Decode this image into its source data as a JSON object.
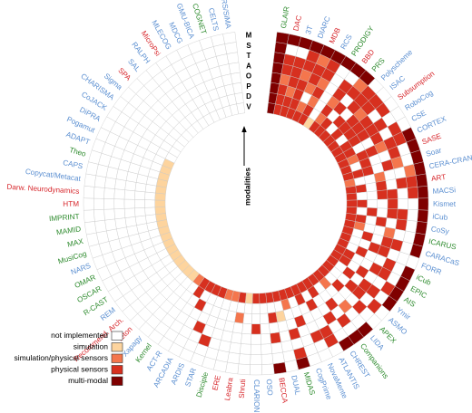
{
  "chart_data": {
    "type": "heatmap",
    "layout": "radial",
    "axis_caption": "modalities",
    "modalities": [
      "M",
      "S",
      "T",
      "A",
      "O",
      "P",
      "D",
      "V"
    ],
    "levels": [
      "not implemented",
      "simulation",
      "simulation/physical sensors",
      "physical sensors",
      "multi-modal"
    ],
    "level_colors": [
      "#ffffff",
      "#fdd49e",
      "#f4764d",
      "#d7301f",
      "#7f0000"
    ],
    "group_colors": {
      "blue": "#5b8fd1",
      "green": "#2e8b2e",
      "red": "#d7262b"
    },
    "architectures": [
      {
        "name": "GLAIR",
        "group": "green",
        "values": [
          4,
          4,
          4,
          4,
          4,
          4,
          4,
          4
        ]
      },
      {
        "name": "DAC",
        "group": "red",
        "values": [
          4,
          0,
          3,
          3,
          2,
          3,
          3,
          3
        ]
      },
      {
        "name": "3T",
        "group": "blue",
        "values": [
          4,
          0,
          3,
          3,
          3,
          2,
          3,
          3
        ]
      },
      {
        "name": "DIARC",
        "group": "blue",
        "values": [
          4,
          3,
          3,
          2,
          3,
          3,
          3,
          3
        ]
      },
      {
        "name": "MDB",
        "group": "red",
        "values": [
          4,
          2,
          3,
          3,
          2,
          0,
          2,
          3
        ]
      },
      {
        "name": "RCS",
        "group": "blue",
        "values": [
          4,
          3,
          3,
          2,
          3,
          2,
          3,
          3
        ]
      },
      {
        "name": "PRODIGY",
        "group": "green",
        "values": [
          4,
          0,
          0,
          0,
          0,
          0,
          0,
          1
        ]
      },
      {
        "name": "BBD",
        "group": "red",
        "values": [
          4,
          0,
          3,
          3,
          2,
          3,
          2,
          3
        ]
      },
      {
        "name": "PRS",
        "group": "green",
        "values": [
          4,
          2,
          3,
          0,
          3,
          0,
          3,
          3
        ]
      },
      {
        "name": "Polyscheme",
        "group": "blue",
        "values": [
          0,
          3,
          3,
          3,
          0,
          3,
          0,
          3
        ]
      },
      {
        "name": "ISAC",
        "group": "blue",
        "values": [
          0,
          3,
          3,
          2,
          3,
          3,
          3,
          3
        ]
      },
      {
        "name": "Subsumption",
        "group": "red",
        "values": [
          0,
          3,
          0,
          3,
          3,
          3,
          0,
          3
        ]
      },
      {
        "name": "RoboCog",
        "group": "blue",
        "values": [
          0,
          0,
          3,
          3,
          3,
          3,
          3,
          3
        ]
      },
      {
        "name": "CSE",
        "group": "blue",
        "values": [
          0,
          3,
          0,
          3,
          0,
          0,
          3,
          3
        ]
      },
      {
        "name": "CORTEX",
        "group": "blue",
        "values": [
          4,
          3,
          3,
          2,
          3,
          3,
          2,
          3
        ]
      },
      {
        "name": "SASE",
        "group": "red",
        "values": [
          4,
          0,
          3,
          0,
          0,
          3,
          0,
          3
        ]
      },
      {
        "name": "Soar",
        "group": "blue",
        "values": [
          4,
          0,
          2,
          3,
          0,
          3,
          3,
          3
        ]
      },
      {
        "name": "CERA-CRANIUM",
        "group": "blue",
        "values": [
          4,
          2,
          0,
          0,
          2,
          0,
          0,
          2
        ]
      },
      {
        "name": "ART",
        "group": "red",
        "values": [
          4,
          3,
          3,
          0,
          3,
          0,
          3,
          3
        ]
      },
      {
        "name": "MACSi",
        "group": "blue",
        "values": [
          4,
          3,
          0,
          3,
          3,
          0,
          0,
          3
        ]
      },
      {
        "name": "Kismet",
        "group": "blue",
        "values": [
          4,
          0,
          0,
          3,
          0,
          0,
          3,
          3
        ]
      },
      {
        "name": "iCub",
        "group": "blue",
        "values": [
          4,
          0,
          3,
          3,
          0,
          3,
          0,
          3
        ]
      },
      {
        "name": "CoSy",
        "group": "blue",
        "values": [
          4,
          0,
          3,
          0,
          3,
          0,
          3,
          3
        ]
      },
      {
        "name": "ICARUS",
        "group": "green",
        "values": [
          4,
          0,
          0,
          2,
          0,
          0,
          2,
          3
        ]
      },
      {
        "name": "CARACaS",
        "group": "blue",
        "values": [
          4,
          0,
          3,
          3,
          0,
          3,
          0,
          3
        ]
      },
      {
        "name": "FORR",
        "group": "blue",
        "values": [
          0,
          0,
          0,
          3,
          3,
          0,
          0,
          3
        ]
      },
      {
        "name": "iCub",
        "group": "green",
        "values": [
          4,
          0,
          3,
          0,
          0,
          3,
          0,
          3
        ]
      },
      {
        "name": "EPIC",
        "group": "green",
        "values": [
          4,
          0,
          3,
          3,
          0,
          0,
          3,
          3
        ]
      },
      {
        "name": "AIS",
        "group": "green",
        "values": [
          4,
          3,
          0,
          0,
          3,
          0,
          3,
          3
        ]
      },
      {
        "name": "Ymir",
        "group": "blue",
        "values": [
          4,
          0,
          3,
          3,
          0,
          3,
          0,
          3
        ]
      },
      {
        "name": "ASMO",
        "group": "blue",
        "values": [
          0,
          3,
          0,
          3,
          3,
          0,
          0,
          3
        ]
      },
      {
        "name": "APEX",
        "group": "green",
        "values": [
          0,
          0,
          3,
          0,
          0,
          3,
          0,
          3
        ]
      },
      {
        "name": "LIDA",
        "group": "blue",
        "values": [
          4,
          0,
          0,
          2,
          0,
          0,
          2,
          3
        ]
      },
      {
        "name": "Companions",
        "group": "green",
        "values": [
          4,
          0,
          3,
          0,
          3,
          0,
          0,
          3
        ]
      },
      {
        "name": "CHREST",
        "group": "blue",
        "values": [
          4,
          0,
          0,
          3,
          0,
          0,
          3,
          3
        ]
      },
      {
        "name": "ATLANTIS",
        "group": "blue",
        "values": [
          0,
          3,
          3,
          0,
          0,
          3,
          0,
          3
        ]
      },
      {
        "name": "NovaMente",
        "group": "blue",
        "values": [
          0,
          0,
          3,
          0,
          0,
          0,
          3,
          3
        ]
      },
      {
        "name": "CogPrime",
        "group": "blue",
        "values": [
          0,
          0,
          0,
          0,
          3,
          0,
          0,
          3
        ]
      },
      {
        "name": "MIDAS",
        "group": "green",
        "values": [
          4,
          3,
          0,
          3,
          0,
          0,
          2,
          3
        ]
      },
      {
        "name": "DUAL",
        "group": "blue",
        "values": [
          0,
          0,
          0,
          0,
          0,
          1,
          0,
          3
        ]
      },
      {
        "name": "BECCA",
        "group": "red",
        "values": [
          4,
          0,
          0,
          3,
          0,
          3,
          0,
          3
        ]
      },
      {
        "name": "OSO",
        "group": "blue",
        "values": [
          0,
          0,
          0,
          0,
          0,
          0,
          0,
          3
        ]
      },
      {
        "name": "CLARION",
        "group": "blue",
        "values": [
          0,
          0,
          0,
          0,
          3,
          0,
          0,
          3
        ]
      },
      {
        "name": "Shruti",
        "group": "red",
        "values": [
          0,
          0,
          0,
          0,
          0,
          0,
          0,
          1
        ]
      },
      {
        "name": "Leabra",
        "group": "red",
        "values": [
          0,
          0,
          0,
          0,
          0,
          2,
          0,
          3
        ]
      },
      {
        "name": "ERE",
        "group": "red",
        "values": [
          0,
          0,
          0,
          0,
          0,
          0,
          0,
          2
        ]
      },
      {
        "name": "Disciple",
        "group": "green",
        "values": [
          0,
          0,
          0,
          0,
          0,
          0,
          0,
          2
        ]
      },
      {
        "name": "STAR",
        "group": "blue",
        "values": [
          0,
          0,
          3,
          0,
          0,
          0,
          0,
          3
        ]
      },
      {
        "name": "ARDIS",
        "group": "blue",
        "values": [
          0,
          0,
          0,
          3,
          0,
          0,
          0,
          3
        ]
      },
      {
        "name": "ARCADIA",
        "group": "blue",
        "values": [
          0,
          0,
          0,
          0,
          0,
          3,
          0,
          3
        ]
      },
      {
        "name": "ACT-R",
        "group": "blue",
        "values": [
          0,
          0,
          0,
          0,
          0,
          0,
          3,
          3
        ]
      },
      {
        "name": "Kernel",
        "group": "green",
        "values": [
          0,
          0,
          0,
          0,
          0,
          0,
          0,
          2
        ]
      },
      {
        "name": "Xapagy",
        "group": "blue",
        "values": [
          0,
          0,
          0,
          0,
          0,
          0,
          0,
          1
        ]
      },
      {
        "name": "Teton",
        "group": "red",
        "values": [
          0,
          0,
          0,
          0,
          0,
          0,
          0,
          1
        ]
      },
      {
        "name": "Recommend. Arch.",
        "group": "red",
        "values": [
          0,
          0,
          0,
          0,
          0,
          0,
          0,
          1
        ]
      },
      {
        "name": "REM",
        "group": "blue",
        "values": [
          0,
          0,
          0,
          0,
          0,
          0,
          0,
          1
        ]
      },
      {
        "name": "R-CAST",
        "group": "green",
        "values": [
          0,
          0,
          0,
          0,
          0,
          0,
          0,
          1
        ]
      },
      {
        "name": "OSCAR",
        "group": "green",
        "values": [
          0,
          0,
          0,
          0,
          0,
          0,
          0,
          1
        ]
      },
      {
        "name": "OMAR",
        "group": "green",
        "values": [
          0,
          0,
          0,
          0,
          0,
          0,
          0,
          1
        ]
      },
      {
        "name": "NARS",
        "group": "blue",
        "values": [
          0,
          0,
          0,
          0,
          0,
          0,
          0,
          1
        ]
      },
      {
        "name": "MusiCog",
        "group": "green",
        "values": [
          0,
          0,
          0,
          0,
          0,
          0,
          0,
          1
        ]
      },
      {
        "name": "MAX",
        "group": "green",
        "values": [
          0,
          0,
          0,
          0,
          0,
          0,
          0,
          1
        ]
      },
      {
        "name": "MAMID",
        "group": "green",
        "values": [
          0,
          0,
          0,
          0,
          0,
          0,
          0,
          1
        ]
      },
      {
        "name": "IMPRINT",
        "group": "green",
        "values": [
          0,
          0,
          0,
          0,
          0,
          0,
          0,
          1
        ]
      },
      {
        "name": "HTM",
        "group": "red",
        "values": [
          0,
          0,
          0,
          0,
          0,
          0,
          0,
          1
        ]
      },
      {
        "name": "Darw. Neurodynamics",
        "group": "red",
        "values": [
          0,
          0,
          0,
          0,
          0,
          0,
          0,
          1
        ]
      },
      {
        "name": "Copycat/Metacat",
        "group": "blue",
        "values": [
          0,
          0,
          0,
          0,
          0,
          0,
          0,
          1
        ]
      },
      {
        "name": "CAPS",
        "group": "blue",
        "values": [
          0,
          0,
          0,
          0,
          0,
          0,
          0,
          1
        ]
      },
      {
        "name": "Theo",
        "group": "green",
        "values": [
          0,
          0,
          0,
          0,
          0,
          0,
          0,
          1
        ]
      },
      {
        "name": "ADAPT",
        "group": "blue",
        "values": [
          0,
          0,
          0,
          0,
          0,
          0,
          0,
          1
        ]
      },
      {
        "name": "Pogamut",
        "group": "blue",
        "values": [
          0,
          0,
          0,
          0,
          0,
          0,
          0,
          1
        ]
      },
      {
        "name": "DiPRA",
        "group": "blue",
        "values": [
          0,
          0,
          0,
          0,
          0,
          0,
          0,
          0
        ]
      },
      {
        "name": "CoJACK",
        "group": "blue",
        "values": [
          0,
          0,
          0,
          0,
          0,
          0,
          0,
          0
        ]
      },
      {
        "name": "CHARISMA",
        "group": "blue",
        "values": [
          0,
          0,
          0,
          0,
          0,
          0,
          0,
          0
        ]
      },
      {
        "name": "Sigma",
        "group": "blue",
        "values": [
          0,
          0,
          0,
          0,
          0,
          0,
          0,
          0
        ]
      },
      {
        "name": "SPA",
        "group": "red",
        "values": [
          0,
          0,
          0,
          0,
          0,
          0,
          0,
          0
        ]
      },
      {
        "name": "SAL",
        "group": "blue",
        "values": [
          0,
          0,
          0,
          0,
          0,
          0,
          0,
          0
        ]
      },
      {
        "name": "RALPH",
        "group": "blue",
        "values": [
          0,
          0,
          0,
          0,
          0,
          0,
          0,
          0
        ]
      },
      {
        "name": "MicroPsi",
        "group": "red",
        "values": [
          0,
          0,
          0,
          0,
          0,
          0,
          0,
          0
        ]
      },
      {
        "name": "MLECOG",
        "group": "blue",
        "values": [
          0,
          0,
          0,
          0,
          0,
          0,
          0,
          0
        ]
      },
      {
        "name": "MDCG",
        "group": "blue",
        "values": [
          0,
          0,
          0,
          0,
          0,
          0,
          0,
          0
        ]
      },
      {
        "name": "GMU-BICA",
        "group": "blue",
        "values": [
          0,
          0,
          0,
          0,
          0,
          0,
          0,
          0
        ]
      },
      {
        "name": "COGNET",
        "group": "green",
        "values": [
          0,
          0,
          0,
          0,
          0,
          0,
          0,
          0
        ]
      },
      {
        "name": "CELTS",
        "group": "blue",
        "values": [
          0,
          0,
          0,
          0,
          0,
          0,
          0,
          0
        ]
      },
      {
        "name": "ARS/SiMA",
        "group": "blue",
        "values": [
          0,
          0,
          0,
          0,
          0,
          0,
          0,
          0
        ]
      }
    ]
  }
}
